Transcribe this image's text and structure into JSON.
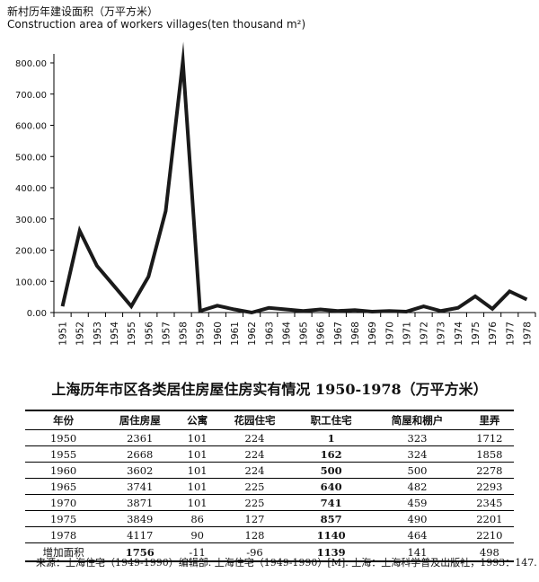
{
  "chart_title_cn": "新村历年建设面积（万平方米）",
  "chart_title_en": "Construction area of workers villages(ten thousand m²)",
  "chart_data": {
    "type": "line",
    "title": "新村历年建设面积（万平方米）",
    "ylabel": "",
    "xlabel": "",
    "x": [
      "1951",
      "1952",
      "1953",
      "1954",
      "1955",
      "1956",
      "1957",
      "1958",
      "1959",
      "1960",
      "1961",
      "1962",
      "1963",
      "1964",
      "1965",
      "1966",
      "1967",
      "1968",
      "1969",
      "1970",
      "1971",
      "1972",
      "1973",
      "1974",
      "1975",
      "1976",
      "1977",
      "1978"
    ],
    "series": [
      {
        "values": [
          20,
          262,
          150,
          85,
          20,
          115,
          325,
          805,
          5,
          22,
          10,
          0,
          15,
          10,
          5,
          10,
          5,
          8,
          3,
          5,
          3,
          20,
          5,
          15,
          52,
          12,
          68,
          42
        ]
      }
    ],
    "ylim": [
      0,
      800
    ],
    "yticks": [
      "0.00",
      "100.00",
      "200.00",
      "300.00",
      "400.00",
      "500.00",
      "600.00",
      "700.00",
      "800.00"
    ],
    "ytick_values": [
      0,
      100,
      200,
      300,
      400,
      500,
      600,
      700,
      800
    ],
    "grid": false,
    "line_color": "#1a1a1a"
  },
  "table": {
    "title": "上海历年市区各类居住房屋住房实有情况 1950-1978（万平方米）",
    "headers": [
      "年份",
      "居住房屋",
      "公寓",
      "花园住宅",
      "职工住宅",
      "简屋和棚户",
      "里弄"
    ],
    "rows": [
      [
        "1950",
        "2361",
        "101",
        "224",
        "1",
        "323",
        "1712"
      ],
      [
        "1955",
        "2668",
        "101",
        "224",
        "162",
        "324",
        "1858"
      ],
      [
        "1960",
        "3602",
        "101",
        "224",
        "500",
        "500",
        "2278"
      ],
      [
        "1965",
        "3741",
        "101",
        "225",
        "640",
        "482",
        "2293"
      ],
      [
        "1970",
        "3871",
        "101",
        "225",
        "741",
        "459",
        "2345"
      ],
      [
        "1975",
        "3849",
        "86",
        "127",
        "857",
        "490",
        "2201"
      ],
      [
        "1978",
        "4117",
        "90",
        "128",
        "1140",
        "464",
        "2210"
      ],
      [
        "增加面积",
        "1756",
        "-11",
        "-96",
        "1139",
        "141",
        "498"
      ]
    ]
  },
  "source": "来源：上海住宅（1949-1990）编辑部. 上海住宅（1949-1990）[M]. 上海：上海科学普及出版社，1993：147."
}
